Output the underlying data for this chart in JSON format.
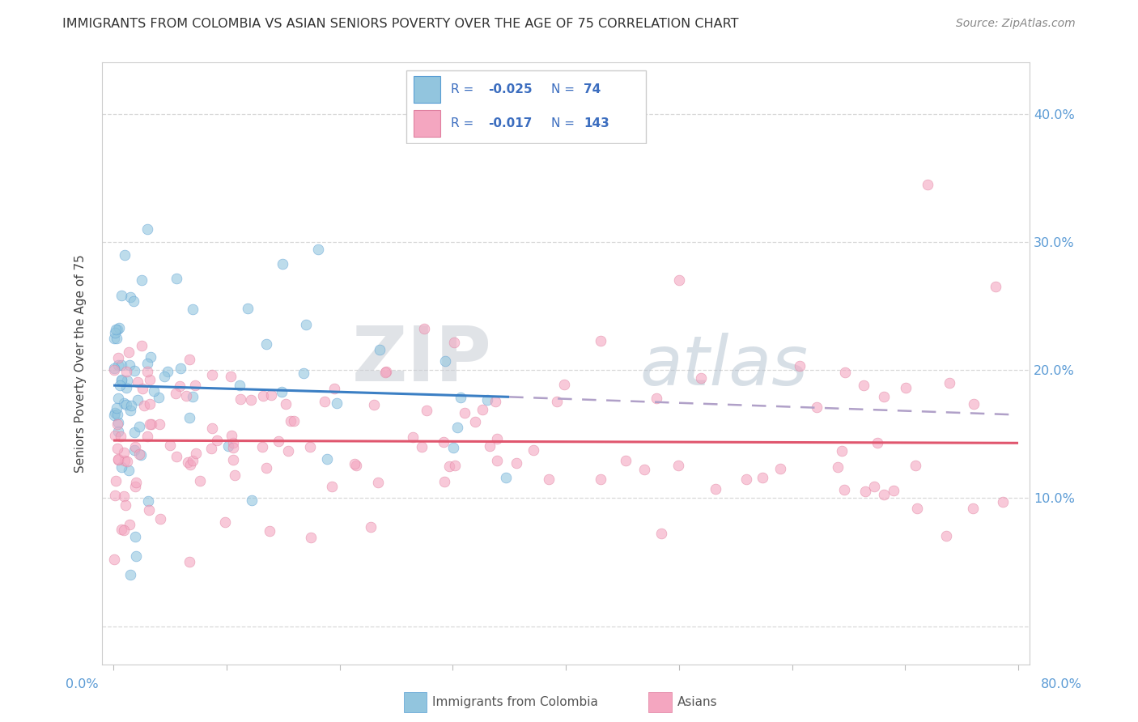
{
  "title": "IMMIGRANTS FROM COLOMBIA VS ASIAN SENIORS POVERTY OVER THE AGE OF 75 CORRELATION CHART",
  "source": "Source: ZipAtlas.com",
  "ylabel": "Seniors Poverty Over the Age of 75",
  "xlim": [
    0.0,
    80.0
  ],
  "ylim": [
    0.0,
    43.0
  ],
  "yticks": [
    0.0,
    10.0,
    20.0,
    30.0,
    40.0
  ],
  "ytick_labels": [
    "",
    "10.0%",
    "20.0%",
    "30.0%",
    "40.0%"
  ],
  "color_blue": "#92c5de",
  "color_pink": "#f4a6c0",
  "color_blue_line": "#3b7fc4",
  "color_red_line": "#e0566e",
  "color_dashed": "#c0b0c8",
  "watermark_zip": "ZIP",
  "watermark_atlas": "atlas",
  "legend_text_color": "#3b6dbf",
  "legend_r1_val": "-0.025",
  "legend_n1_val": "74",
  "legend_r2_val": "-0.017",
  "legend_n2_val": "143",
  "blue_line_x0": 0,
  "blue_line_y0": 18.8,
  "blue_line_x1": 35,
  "blue_line_y1": 17.9,
  "dashed_line_x0": 35,
  "dashed_line_y0": 17.9,
  "dashed_line_x1": 80,
  "dashed_line_y1": 16.5,
  "red_line_x0": 0,
  "red_line_y0": 14.5,
  "red_line_x1": 80,
  "red_line_y1": 14.3,
  "colombia_seed": 42,
  "asians_seed": 99
}
